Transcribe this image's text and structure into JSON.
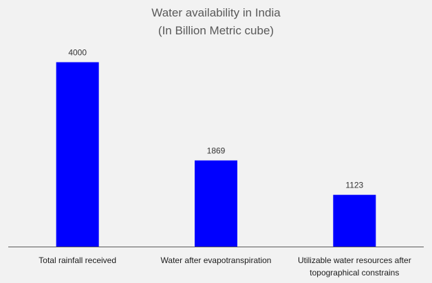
{
  "chart_data": {
    "type": "bar",
    "title_lines": [
      "Water availability in India",
      "(In Billion Metric cube)"
    ],
    "categories": [
      [
        "Total rainfall received"
      ],
      [
        "Water after evapotranspiration"
      ],
      [
        "Utilizable water resources after",
        "topographical constrains"
      ]
    ],
    "values": [
      4000,
      1869,
      1123
    ],
    "data_labels": [
      "4000",
      "1869",
      "1123"
    ],
    "ylim": [
      0,
      4500
    ],
    "xlabel": "",
    "ylabel": "",
    "grid": false,
    "legend": "none",
    "bar_color": "#0000ff",
    "axis_color": "#595959"
  }
}
